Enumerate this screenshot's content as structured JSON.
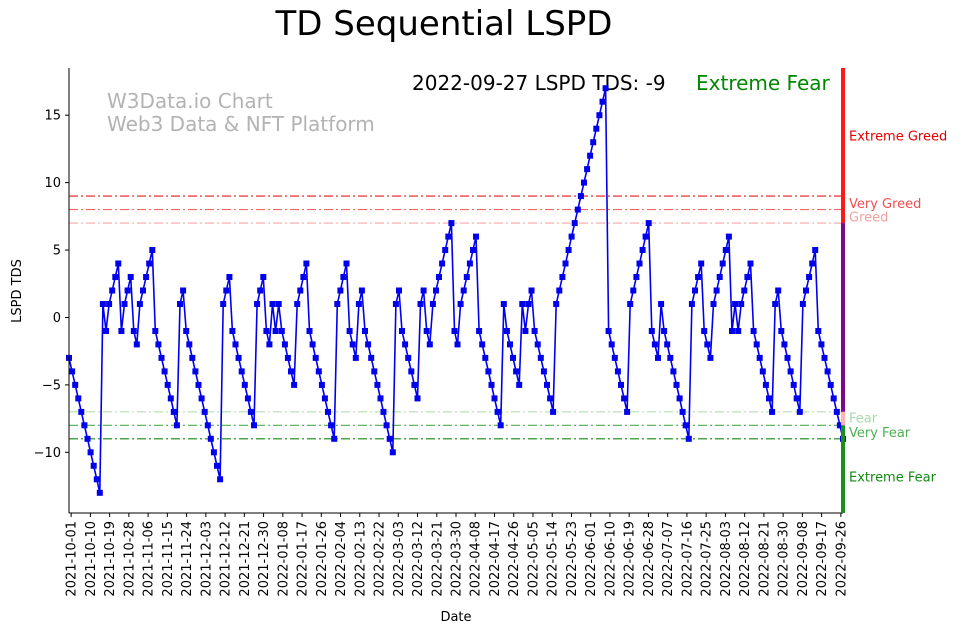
{
  "chart_data": {
    "type": "line",
    "title": "TD Sequential LSPD",
    "xlabel": "Date",
    "ylabel": "LSPD TDS",
    "ylim": [
      -14.5,
      18.5
    ],
    "yticks": [
      -10,
      -5,
      0,
      5,
      10,
      15
    ],
    "xticks": [
      "2021-10-01",
      "2021-10-10",
      "2021-10-19",
      "2021-10-28",
      "2021-11-06",
      "2021-11-15",
      "2021-11-24",
      "2021-12-03",
      "2021-12-12",
      "2021-12-21",
      "2021-12-30",
      "2022-01-08",
      "2022-01-17",
      "2022-01-26",
      "2022-02-04",
      "2022-02-13",
      "2022-02-22",
      "2022-03-03",
      "2022-03-12",
      "2022-03-21",
      "2022-03-30",
      "2022-04-08",
      "2022-04-17",
      "2022-04-26",
      "2022-05-05",
      "2022-05-14",
      "2022-05-23",
      "2022-06-01",
      "2022-06-10",
      "2022-06-19",
      "2022-06-28",
      "2022-07-07",
      "2022-07-16",
      "2022-07-25",
      "2022-08-03",
      "2022-08-12",
      "2022-08-21",
      "2022-08-30",
      "2022-09-08",
      "2022-09-17",
      "2022-09-26"
    ],
    "grid": false,
    "series": [
      {
        "color": "#0000ee",
        "marker": "square",
        "x_start": "2021-09-30",
        "x_end": "2022-09-27",
        "values": [
          -3,
          -4,
          -5,
          -6,
          -7,
          -8,
          -9,
          -10,
          -11,
          -12,
          -13,
          1,
          -1,
          1,
          2,
          3,
          4,
          -1,
          1,
          2,
          3,
          -1,
          -2,
          1,
          2,
          3,
          4,
          5,
          -1,
          -2,
          -3,
          -4,
          -5,
          -6,
          -7,
          -8,
          1,
          2,
          -1,
          -2,
          -3,
          -4,
          -5,
          -6,
          -7,
          -8,
          -9,
          -10,
          -11,
          -12,
          1,
          2,
          3,
          -1,
          -2,
          -3,
          -4,
          -5,
          -6,
          -7,
          -8,
          1,
          2,
          3,
          -1,
          -2,
          1,
          -1,
          1,
          -1,
          -2,
          -3,
          -4,
          -5,
          1,
          2,
          3,
          4,
          -1,
          -2,
          -3,
          -4,
          -5,
          -6,
          -7,
          -8,
          -9,
          1,
          2,
          3,
          4,
          -1,
          -2,
          -3,
          1,
          2,
          -1,
          -2,
          -3,
          -4,
          -5,
          -6,
          -7,
          -8,
          -9,
          -10,
          1,
          2,
          -1,
          -2,
          -3,
          -4,
          -5,
          -6,
          1,
          2,
          -1,
          -2,
          1,
          2,
          3,
          4,
          5,
          6,
          7,
          -1,
          -2,
          1,
          2,
          3,
          4,
          5,
          6,
          -1,
          -2,
          -3,
          -4,
          -5,
          -6,
          -7,
          -8,
          1,
          -1,
          -2,
          -3,
          -4,
          -5,
          1,
          -1,
          1,
          2,
          -1,
          -2,
          -3,
          -4,
          -5,
          -6,
          -7,
          1,
          2,
          3,
          4,
          5,
          6,
          7,
          8,
          9,
          10,
          11,
          12,
          13,
          14,
          15,
          16,
          17,
          -1,
          -2,
          -3,
          -4,
          -5,
          -6,
          -7,
          1,
          2,
          3,
          4,
          5,
          6,
          7,
          -1,
          -2,
          -3,
          1,
          -1,
          -2,
          -3,
          -4,
          -5,
          -6,
          -7,
          -8,
          -9,
          1,
          2,
          3,
          4,
          -1,
          -2,
          -3,
          1,
          2,
          3,
          4,
          5,
          6,
          -1,
          1,
          -1,
          1,
          2,
          3,
          4,
          -1,
          -2,
          -3,
          -4,
          -5,
          -6,
          -7,
          1,
          2,
          -1,
          -2,
          -3,
          -4,
          -5,
          -6,
          -7,
          1,
          2,
          3,
          4,
          5,
          -1,
          -2,
          -3,
          -4,
          -5,
          -6,
          -7,
          -8,
          -9
        ]
      }
    ],
    "reference_lines": [
      {
        "y": 9,
        "color": "#e8191d",
        "style": "dashdot"
      },
      {
        "y": 8,
        "color": "#f26666",
        "style": "dashdot"
      },
      {
        "y": 7,
        "color": "#f6a8a8",
        "style": "dashdot"
      },
      {
        "y": -7,
        "color": "#a6dba6",
        "style": "dashdot"
      },
      {
        "y": -8,
        "color": "#4caf50",
        "style": "dashdot"
      },
      {
        "y": -9,
        "color": "#118a11",
        "style": "dashdot"
      }
    ],
    "zone_labels": [
      {
        "label": "Extreme Greed",
        "y": 13.5,
        "color": "#e60000"
      },
      {
        "label": "Very Greed",
        "y": 8.5,
        "color": "#f05050"
      },
      {
        "label": "Greed",
        "y": 7.5,
        "color": "#f2a0a0"
      },
      {
        "label": "Fear",
        "y": -7.4,
        "color": "#a6dba6"
      },
      {
        "label": "Very Fear",
        "y": -8.5,
        "color": "#4caf50"
      },
      {
        "label": "Extreme Fear",
        "y": -11.8,
        "color": "#118a11"
      }
    ],
    "zone_bar": [
      {
        "from": 18.5,
        "to": 7,
        "color": "#ff1a1a"
      },
      {
        "from": 7,
        "to": -7,
        "color": "#7a0a8a"
      },
      {
        "from": -7,
        "to": -8,
        "color": "#ffb3b3"
      },
      {
        "from": -8,
        "to": -14.5,
        "color": "#1a8f1a"
      }
    ],
    "status": {
      "text": "2022-09-27 LSPD TDS: -9",
      "sentiment": "Extreme Fear",
      "sentiment_color": "#008800"
    },
    "watermark": [
      "W3Data.io Chart",
      "Web3 Data & NFT Platform"
    ]
  }
}
